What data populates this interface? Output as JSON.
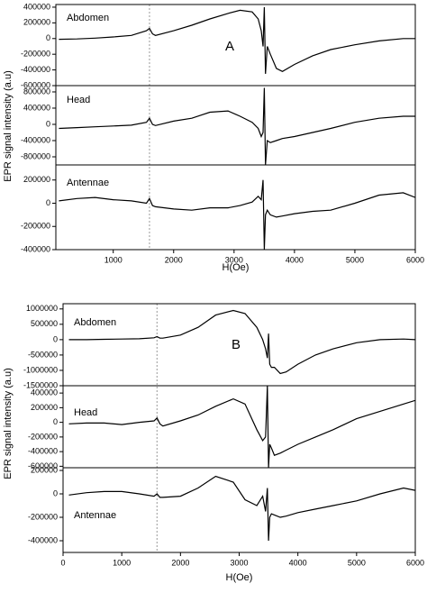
{
  "chart_data": [
    {
      "type": "line",
      "annotation": "A",
      "xlabel": "H(Oe)",
      "ylabel": "EPR signal intensity (a.u)",
      "xlim": [
        50,
        6000
      ],
      "xticks": [
        1000,
        2000,
        3000,
        4000,
        5000,
        6000
      ],
      "marker_x": 1600,
      "x": [
        100,
        400,
        700,
        1000,
        1300,
        1550,
        1600,
        1650,
        1700,
        2000,
        2300,
        2600,
        2900,
        3100,
        3300,
        3400,
        3450,
        3480,
        3500,
        3520,
        3550,
        3600,
        3700,
        3800,
        4000,
        4300,
        4600,
        5000,
        5400,
        5800,
        6000
      ],
      "series": [
        {
          "name": "Abdomen",
          "color": "#000000",
          "ylim": [
            -600000,
            434000
          ],
          "yticks": [
            -600000,
            -400000,
            -200000,
            0,
            200000,
            400000
          ],
          "values": [
            -10000,
            -5000,
            5000,
            20000,
            40000,
            100000,
            130000,
            60000,
            40000,
            100000,
            170000,
            250000,
            320000,
            360000,
            340000,
            250000,
            100000,
            -100000,
            400000,
            -450000,
            -100000,
            -200000,
            -380000,
            -420000,
            -330000,
            -220000,
            -140000,
            -80000,
            -30000,
            0,
            0
          ]
        },
        {
          "name": "Head",
          "color": "#000000",
          "ylim": [
            -1000000,
            955000
          ],
          "yticks": [
            -800000,
            -400000,
            0,
            400000,
            800000
          ],
          "values": [
            -100000,
            -80000,
            -60000,
            -40000,
            -20000,
            50000,
            150000,
            0,
            -30000,
            80000,
            150000,
            300000,
            330000,
            200000,
            50000,
            -100000,
            -300000,
            -200000,
            900000,
            -1000000,
            -400000,
            -450000,
            -400000,
            -350000,
            -300000,
            -200000,
            -100000,
            50000,
            150000,
            200000,
            200000
          ]
        },
        {
          "name": "Antennae",
          "color": "#000000",
          "ylim": [
            -400000,
            330000
          ],
          "yticks": [
            -400000,
            -200000,
            0,
            200000
          ],
          "values": [
            20000,
            40000,
            50000,
            30000,
            20000,
            0,
            40000,
            -20000,
            -30000,
            -50000,
            -60000,
            -40000,
            -40000,
            -20000,
            10000,
            60000,
            30000,
            200000,
            -400000,
            -100000,
            -60000,
            -100000,
            -120000,
            -110000,
            -90000,
            -70000,
            -60000,
            0,
            70000,
            90000,
            50000
          ]
        }
      ]
    },
    {
      "type": "line",
      "annotation": "B",
      "xlabel": "H(Oe)",
      "ylabel": "EPR signal intensity (a.u)",
      "xlim": [
        0,
        6000
      ],
      "xticks": [
        0,
        1000,
        2000,
        3000,
        4000,
        5000,
        6000
      ],
      "marker_x": 1600,
      "x": [
        100,
        400,
        700,
        1000,
        1300,
        1550,
        1600,
        1650,
        1700,
        2000,
        2300,
        2600,
        2900,
        3100,
        3300,
        3400,
        3450,
        3480,
        3500,
        3520,
        3550,
        3600,
        3700,
        3800,
        4000,
        4300,
        4600,
        5000,
        5400,
        5800,
        6000
      ],
      "series": [
        {
          "name": "Abdomen",
          "color": "#000000",
          "ylim": [
            -1500000,
            1170000
          ],
          "yticks": [
            -1500000,
            -1000000,
            -500000,
            0,
            500000,
            1000000
          ],
          "values": [
            0,
            0,
            10000,
            20000,
            30000,
            60000,
            100000,
            50000,
            50000,
            150000,
            400000,
            800000,
            950000,
            850000,
            400000,
            0,
            -300000,
            -600000,
            200000,
            -800000,
            -900000,
            -900000,
            -1100000,
            -1050000,
            -800000,
            -500000,
            -300000,
            -100000,
            0,
            20000,
            0
          ]
        },
        {
          "name": "Head",
          "color": "#000000",
          "ylim": [
            -620000,
            500000
          ],
          "yticks": [
            -600000,
            -400000,
            -200000,
            0,
            200000,
            400000
          ],
          "values": [
            -20000,
            -10000,
            -10000,
            -30000,
            0,
            20000,
            60000,
            -20000,
            -50000,
            20000,
            100000,
            220000,
            320000,
            250000,
            -100000,
            -250000,
            -200000,
            500000,
            -620000,
            -300000,
            -350000,
            -450000,
            -420000,
            -380000,
            -300000,
            -200000,
            -100000,
            50000,
            150000,
            250000,
            300000
          ]
        },
        {
          "name": "Antennae",
          "color": "#000000",
          "ylim": [
            -500000,
            223000
          ],
          "yticks": [
            -400000,
            -200000,
            0,
            200000
          ],
          "values": [
            -10000,
            10000,
            20000,
            20000,
            0,
            -20000,
            0,
            -30000,
            -30000,
            -20000,
            50000,
            150000,
            100000,
            -50000,
            -100000,
            -20000,
            -150000,
            50000,
            -400000,
            -200000,
            -170000,
            -180000,
            -200000,
            -190000,
            -160000,
            -130000,
            -100000,
            -60000,
            0,
            50000,
            30000
          ]
        }
      ]
    }
  ]
}
